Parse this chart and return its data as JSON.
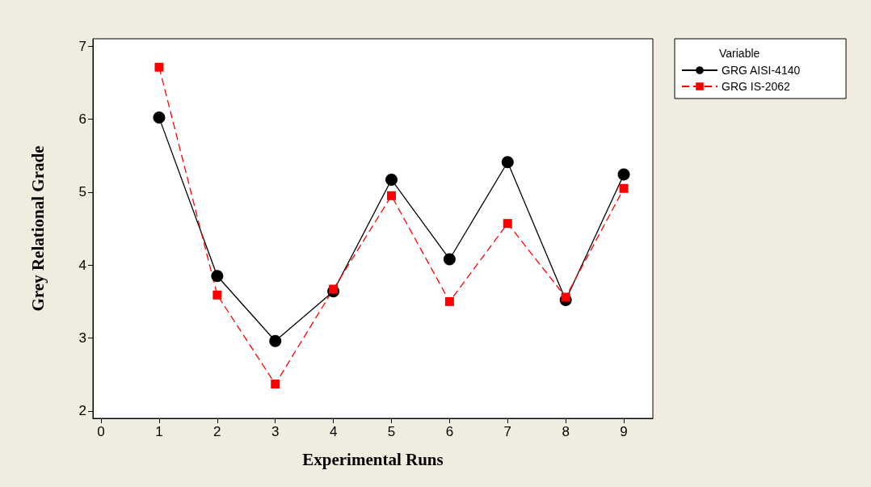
{
  "chart_data": {
    "type": "line",
    "xlabel": "Experimental Runs",
    "ylabel": "Grey Relational Grade",
    "legend_title": "Variable",
    "x": [
      1,
      2,
      3,
      4,
      5,
      6,
      7,
      8,
      9
    ],
    "series": [
      {
        "name": "GRG AISI-4140",
        "color": "#000000",
        "marker": "circle",
        "line_style": "solid",
        "values": [
          6.02,
          3.85,
          2.96,
          3.64,
          5.17,
          4.08,
          5.41,
          3.52,
          5.24
        ]
      },
      {
        "name": "GRG IS-2062",
        "color": "#ff0000",
        "marker": "square",
        "line_style": "dashed",
        "values": [
          6.71,
          3.59,
          2.37,
          3.67,
          4.95,
          3.5,
          4.57,
          3.56,
          5.05
        ]
      }
    ],
    "xlim": [
      -0.14,
      9.5
    ],
    "xticks": [
      0,
      1,
      2,
      3,
      4,
      5,
      6,
      7,
      8,
      9
    ],
    "ylim": [
      1.9,
      7.1
    ],
    "yticks": [
      2,
      3,
      4,
      5,
      6,
      7
    ],
    "grid": false,
    "legend": "top right"
  }
}
